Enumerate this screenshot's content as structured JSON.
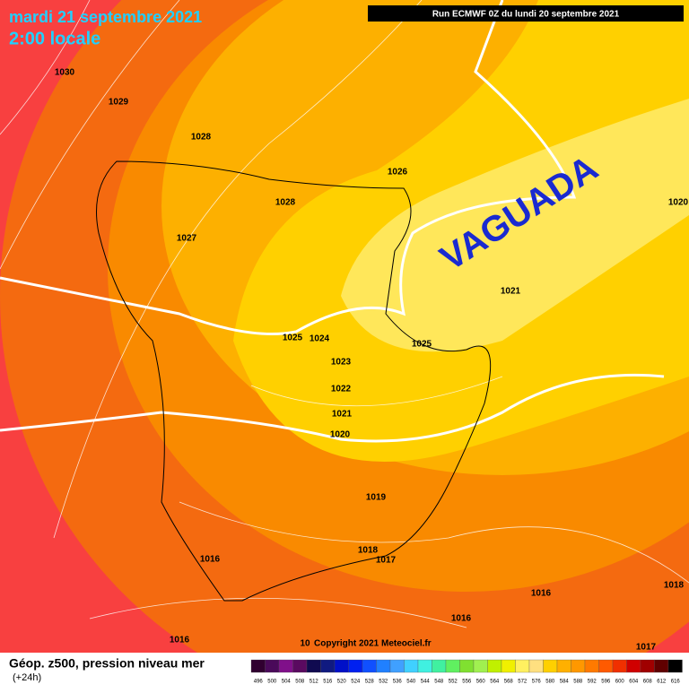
{
  "header": {
    "date": "mardi 21 septembre 2021",
    "time": "2:00 locale",
    "run": "Run ECMWF 0Z du lundi 20 septembre 2021"
  },
  "annotation": "VAGUADA",
  "isobar_labels": [
    "1030",
    "1029",
    "1028",
    "1026",
    "1028",
    "1027",
    "1025",
    "1024",
    "1023",
    "1022",
    "1021",
    "1020",
    "1025",
    "1021",
    "1020",
    "1019",
    "1018",
    "1017",
    "1016",
    "1016",
    "1016",
    "1018",
    "1016",
    "1017",
    "10"
  ],
  "footer": {
    "title": "Géop. z500, pression niveau mer",
    "subtitle": "(+24h)",
    "copyright": "Copyright 2021 Meteociel.fr"
  },
  "scale": {
    "labels": [
      496,
      500,
      504,
      508,
      512,
      516,
      520,
      524,
      528,
      532,
      536,
      540,
      544,
      548,
      552,
      556,
      560,
      564,
      568,
      572,
      576,
      580,
      584,
      588,
      592,
      596,
      600,
      604,
      608,
      612,
      616
    ],
    "colors": [
      "#300030",
      "#4a0a5a",
      "#80108a",
      "#5a0a60",
      "#100a50",
      "#101a80",
      "#0010c8",
      "#0020f0",
      "#1050ff",
      "#2080ff",
      "#40a0ff",
      "#40d0ff",
      "#40f0e0",
      "#40f0a0",
      "#60f060",
      "#80e030",
      "#a0f050",
      "#c0f000",
      "#f0f000",
      "#fff060",
      "#ffe080",
      "#ffd000",
      "#ffb000",
      "#ff9800",
      "#ff7a00",
      "#ff5a00",
      "#f03000",
      "#d00000",
      "#a00000",
      "#600000",
      "#000000"
    ]
  }
}
